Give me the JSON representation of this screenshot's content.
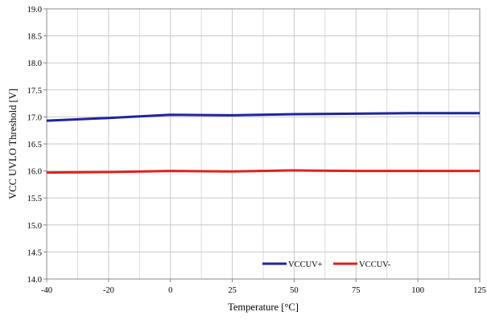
{
  "chart_data": {
    "type": "line",
    "title": "",
    "xlabel": "Temperature [°C]",
    "ylabel": "VCC UVLO Threshold  [V]",
    "x_ticks": [
      "-40",
      "-20",
      "0",
      "25",
      "50",
      "75",
      "100",
      "125"
    ],
    "x_tick_values": [
      -40,
      -20,
      0,
      25,
      50,
      75,
      100,
      125
    ],
    "y_ticks": [
      "14.0",
      "14.5",
      "15.0",
      "15.5",
      "16.0",
      "16.5",
      "17.0",
      "17.5",
      "18.0",
      "18.5",
      "19.0"
    ],
    "y_tick_values": [
      14.0,
      14.5,
      15.0,
      15.5,
      16.0,
      16.5,
      17.0,
      17.5,
      18.0,
      18.5,
      19.0
    ],
    "ylim": [
      14.0,
      19.0
    ],
    "grid": true,
    "legend_position": "bottom-right",
    "series": [
      {
        "name": "VCCUV+",
        "color": "#1f24a0",
        "points": [
          [
            -40,
            16.93
          ],
          [
            -20,
            16.98
          ],
          [
            0,
            17.04
          ],
          [
            25,
            17.03
          ],
          [
            50,
            17.05
          ],
          [
            75,
            17.06
          ],
          [
            100,
            17.07
          ],
          [
            125,
            17.07
          ]
        ]
      },
      {
        "name": "VCCUV-",
        "color": "#e02020",
        "points": [
          [
            -40,
            15.97
          ],
          [
            -20,
            15.98
          ],
          [
            0,
            16.0
          ],
          [
            25,
            15.99
          ],
          [
            50,
            16.01
          ],
          [
            75,
            16.0
          ],
          [
            100,
            16.0
          ],
          [
            125,
            16.0
          ]
        ]
      }
    ]
  }
}
